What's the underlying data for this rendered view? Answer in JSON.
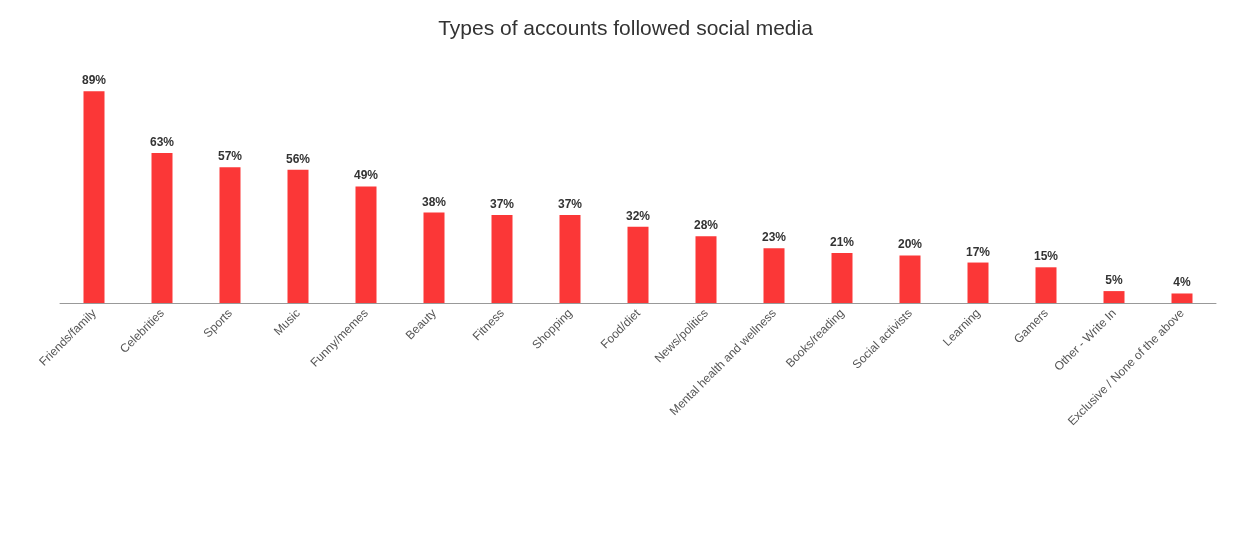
{
  "chart_data": {
    "type": "bar",
    "title": "Types of accounts followed social media",
    "categories": [
      "Friends/family",
      "Celebrities",
      "Sports",
      "Music",
      "Funny/memes",
      "Beauty",
      "Fitness",
      "Shopping",
      "Food/diet",
      "News/politics",
      "Mental health and wellness",
      "Books/reading",
      "Social activists",
      "Learning",
      "Gamers",
      "Other - Write In",
      "Exclusive / None of the above"
    ],
    "values": [
      89,
      63,
      57,
      56,
      49,
      38,
      37,
      37,
      32,
      28,
      23,
      21,
      20,
      17,
      15,
      5,
      4
    ],
    "value_labels": [
      "89%",
      "63%",
      "57%",
      "56%",
      "49%",
      "38%",
      "37%",
      "37%",
      "32%",
      "28%",
      "23%",
      "21%",
      "20%",
      "17%",
      "15%",
      "5%",
      "4%"
    ],
    "color": "#fb3737"
  }
}
